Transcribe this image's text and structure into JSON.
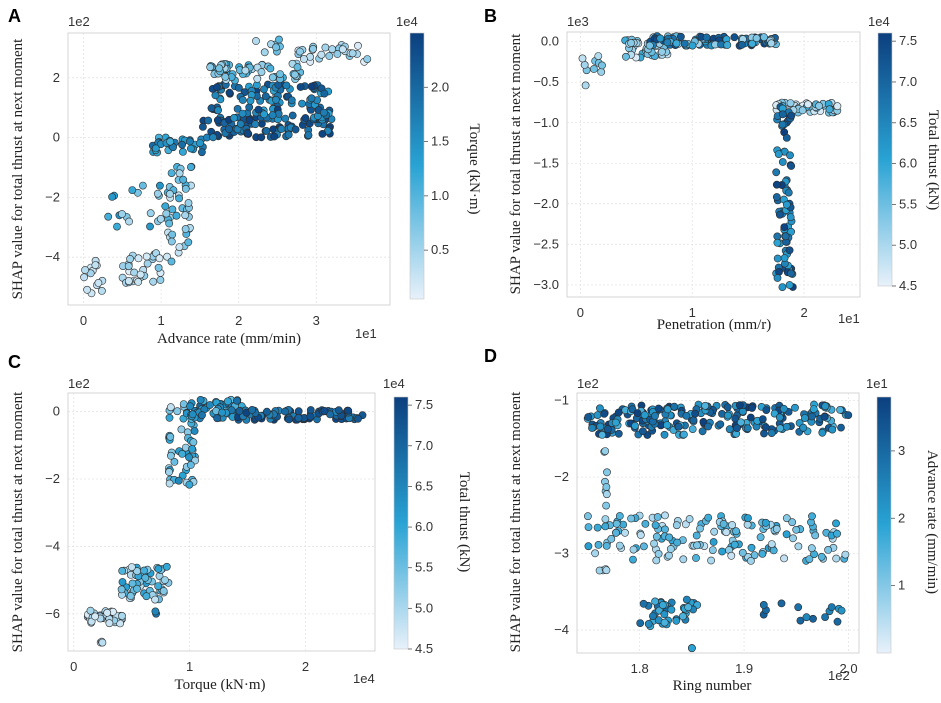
{
  "colors": {
    "cmap_low": "#e8f1fa",
    "cmap_mid": "#29a3d4",
    "cmap_high": "#0c3f7e",
    "point_edge": "#2b2b2b"
  },
  "chart_data": [
    {
      "panel": "A",
      "type": "scatter",
      "xlabel": "Advance rate (mm/min)",
      "ylabel": "SHAP value for total thrust at next moment",
      "x_multiplier": "1e1",
      "y_multiplier": "1e2",
      "xlim": [
        -0.2,
        3.95
      ],
      "ylim": [
        -5.6,
        3.5
      ],
      "xticks": [
        0,
        1,
        2,
        3
      ],
      "yticks": [
        -4,
        -2,
        0,
        2
      ],
      "colorbar": {
        "label": "Torque (kN·m)",
        "multiplier": "1e4",
        "range": [
          0.05,
          2.5
        ],
        "ticks": [
          0.5,
          1.0,
          1.5,
          2.0
        ]
      },
      "clusters": [
        {
          "x": [
            0.0,
            0.25
          ],
          "y": [
            -5.3,
            -4.1
          ],
          "c": [
            0.1,
            0.5
          ],
          "n": 14
        },
        {
          "x": [
            0.5,
            1.0
          ],
          "y": [
            -4.9,
            -3.8
          ],
          "c": [
            0.1,
            0.8
          ],
          "n": 30
        },
        {
          "x": [
            1.05,
            1.4
          ],
          "y": [
            -4.2,
            -0.8
          ],
          "c": [
            0.2,
            1.2
          ],
          "n": 45
        },
        {
          "x": [
            0.3,
            1.0
          ],
          "y": [
            -3.0,
            -1.5
          ],
          "c": [
            0.4,
            1.5
          ],
          "n": 18
        },
        {
          "x": [
            0.85,
            1.55
          ],
          "y": [
            -0.5,
            0.05
          ],
          "c": [
            1.0,
            2.0
          ],
          "n": 30
        },
        {
          "x": [
            1.5,
            3.2
          ],
          "y": [
            0.0,
            0.7
          ],
          "c": [
            1.6,
            2.5
          ],
          "n": 90
        },
        {
          "x": [
            1.6,
            3.2
          ],
          "y": [
            0.6,
            1.8
          ],
          "c": [
            1.2,
            2.5
          ],
          "n": 110
        },
        {
          "x": [
            1.6,
            2.8
          ],
          "y": [
            1.9,
            2.5
          ],
          "c": [
            0.3,
            1.2
          ],
          "n": 55
        },
        {
          "x": [
            2.7,
            3.7
          ],
          "y": [
            2.5,
            3.1
          ],
          "c": [
            0.1,
            0.7
          ],
          "n": 30
        },
        {
          "x": [
            2.2,
            2.6
          ],
          "y": [
            2.8,
            3.3
          ],
          "c": [
            0.3,
            1.0
          ],
          "n": 8
        }
      ]
    },
    {
      "panel": "B",
      "type": "scatter",
      "xlabel": "Penetration (mm/r)",
      "ylabel": "SHAP value for total thrust at next moment",
      "x_multiplier": "1e1",
      "y_multiplier": "1e3",
      "xlim": [
        -0.12,
        2.5
      ],
      "ylim": [
        -3.15,
        0.12
      ],
      "xticks": [
        0,
        1,
        2
      ],
      "yticks": [
        0.0,
        -0.5,
        -1.0,
        -1.5,
        -2.0,
        -2.5,
        -3.0
      ],
      "colorbar": {
        "label": "Total thrust (kN)",
        "multiplier": "1e4",
        "range": [
          4.5,
          7.6
        ],
        "ticks": [
          4.5,
          5.0,
          5.5,
          6.0,
          6.5,
          7.0,
          7.5
        ]
      },
      "clusters": [
        {
          "x": [
            0.0,
            0.2
          ],
          "y": [
            -0.55,
            -0.15
          ],
          "c": [
            4.5,
            5.5
          ],
          "n": 10
        },
        {
          "x": [
            0.4,
            0.8
          ],
          "y": [
            -0.2,
            0.03
          ],
          "c": [
            4.6,
            6.0
          ],
          "n": 40
        },
        {
          "x": [
            0.6,
            1.75
          ],
          "y": [
            -0.05,
            0.07
          ],
          "c": [
            5.0,
            7.5
          ],
          "n": 110
        },
        {
          "x": [
            1.75,
            2.3
          ],
          "y": [
            -0.88,
            -0.75
          ],
          "c": [
            4.6,
            6.0
          ],
          "n": 45
        },
        {
          "x": [
            1.75,
            1.9
          ],
          "y": [
            -3.05,
            -0.8
          ],
          "c": [
            6.0,
            7.6
          ],
          "n": 80
        }
      ]
    },
    {
      "panel": "C",
      "type": "scatter",
      "xlabel": "Torque (kN·m)",
      "ylabel": "SHAP value for total thrust at next moment",
      "x_multiplier": "1e4",
      "y_multiplier": "1e2",
      "xlim": [
        -0.05,
        2.6
      ],
      "ylim": [
        -7.1,
        0.55
      ],
      "xticks": [
        0,
        1,
        2
      ],
      "yticks": [
        0,
        -2,
        -4,
        -6
      ],
      "colorbar": {
        "label": "Total thrust (kN)",
        "multiplier": "1e4",
        "range": [
          4.5,
          7.6
        ],
        "ticks": [
          4.5,
          5.0,
          5.5,
          6.0,
          6.5,
          7.0,
          7.5
        ]
      },
      "clusters": [
        {
          "x": [
            0.12,
            0.42
          ],
          "y": [
            -6.3,
            -5.9
          ],
          "c": [
            4.6,
            5.2
          ],
          "n": 45
        },
        {
          "x": [
            0.2,
            0.25
          ],
          "y": [
            -6.9,
            -6.8
          ],
          "c": [
            4.8,
            5.0
          ],
          "n": 3
        },
        {
          "x": [
            0.4,
            0.82
          ],
          "y": [
            -5.6,
            -4.6
          ],
          "c": [
            4.8,
            6.2
          ],
          "n": 55
        },
        {
          "x": [
            0.7,
            0.75
          ],
          "y": [
            -6.0,
            -5.9
          ],
          "c": [
            6.5,
            6.8
          ],
          "n": 2
        },
        {
          "x": [
            0.82,
            1.05
          ],
          "y": [
            -2.2,
            0.25
          ],
          "c": [
            4.8,
            6.5
          ],
          "n": 55
        },
        {
          "x": [
            1.0,
            1.45
          ],
          "y": [
            -0.2,
            0.35
          ],
          "c": [
            5.5,
            7.0
          ],
          "n": 60
        },
        {
          "x": [
            1.4,
            2.5
          ],
          "y": [
            -0.25,
            0.05
          ],
          "c": [
            6.5,
            7.6
          ],
          "n": 95
        }
      ]
    },
    {
      "panel": "D",
      "type": "scatter",
      "xlabel": "Ring number",
      "ylabel": "SHAP value for total thrust at next moment",
      "x_multiplier": "1e2",
      "y_multiplier": "1e2",
      "xlim": [
        1.74,
        2.01
      ],
      "ylim": [
        -4.3,
        -0.9
      ],
      "xticks": [
        1.8,
        1.9,
        2.0
      ],
      "yticks": [
        -1,
        -2,
        -3,
        -4
      ],
      "colorbar": {
        "label": "Advance rate (mm/min)",
        "multiplier": "1e1",
        "range": [
          0.0,
          3.8
        ],
        "ticks": [
          1,
          2,
          3
        ]
      },
      "clusters": [
        {
          "x": [
            1.75,
            2.0
          ],
          "y": [
            -1.45,
            -1.05
          ],
          "c": [
            1.5,
            3.8
          ],
          "n": 230
        },
        {
          "x": [
            1.76,
            1.77
          ],
          "y": [
            -2.4,
            -1.6
          ],
          "c": [
            0.5,
            1.5
          ],
          "n": 8
        },
        {
          "x": [
            1.75,
            2.0
          ],
          "y": [
            -3.1,
            -2.5
          ],
          "c": [
            0.3,
            2.0
          ],
          "n": 150
        },
        {
          "x": [
            1.76,
            1.77
          ],
          "y": [
            -3.3,
            -3.2
          ],
          "c": [
            0.3,
            0.8
          ],
          "n": 4
        },
        {
          "x": [
            1.8,
            1.87
          ],
          "y": [
            -3.95,
            -3.6
          ],
          "c": [
            1.5,
            3.0
          ],
          "n": 40
        },
        {
          "x": [
            1.91,
            2.0
          ],
          "y": [
            -3.9,
            -3.65
          ],
          "c": [
            2.0,
            3.2
          ],
          "n": 14
        },
        {
          "x": [
            1.85,
            1.85
          ],
          "y": [
            -4.25,
            -4.2
          ],
          "c": [
            1.5,
            2.0
          ],
          "n": 2
        }
      ]
    }
  ]
}
